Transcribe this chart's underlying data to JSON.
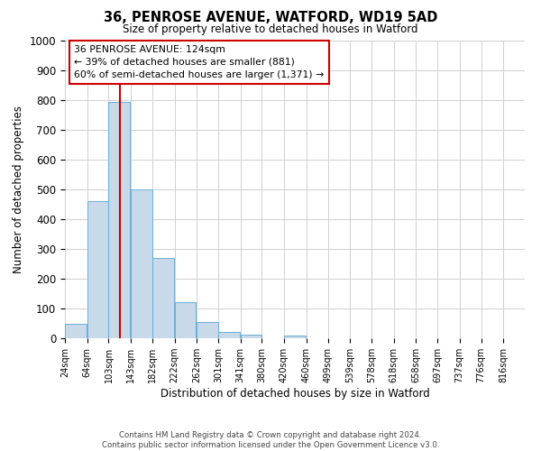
{
  "title": "36, PENROSE AVENUE, WATFORD, WD19 5AD",
  "subtitle": "Size of property relative to detached houses in Watford",
  "xlabel": "Distribution of detached houses by size in Watford",
  "ylabel": "Number of detached properties",
  "bar_left_edges": [
    24,
    64,
    103,
    143,
    182,
    222,
    262,
    301,
    341,
    380,
    420,
    460,
    499,
    539,
    578,
    618,
    658,
    697,
    737,
    776
  ],
  "bar_heights": [
    50,
    460,
    795,
    500,
    270,
    120,
    55,
    20,
    13,
    0,
    8,
    0,
    0,
    0,
    0,
    0,
    0,
    0,
    0,
    0
  ],
  "bin_width": 39,
  "bar_color": "#c8d9ea",
  "bar_edge_color": "#6aaed6",
  "vline_x": 124,
  "vline_color": "#cc0000",
  "ylim_max": 1000,
  "yticks": [
    0,
    100,
    200,
    300,
    400,
    500,
    600,
    700,
    800,
    900,
    1000
  ],
  "xtick_labels": [
    "24sqm",
    "64sqm",
    "103sqm",
    "143sqm",
    "182sqm",
    "222sqm",
    "262sqm",
    "301sqm",
    "341sqm",
    "380sqm",
    "420sqm",
    "460sqm",
    "499sqm",
    "539sqm",
    "578sqm",
    "618sqm",
    "658sqm",
    "697sqm",
    "737sqm",
    "776sqm",
    "816sqm"
  ],
  "xtick_positions": [
    24,
    64,
    103,
    143,
    182,
    222,
    262,
    301,
    341,
    380,
    420,
    460,
    499,
    539,
    578,
    618,
    658,
    697,
    737,
    776,
    816
  ],
  "xlim": [
    24,
    855
  ],
  "annotation_title": "36 PENROSE AVENUE: 124sqm",
  "annotation_line1": "← 39% of detached houses are smaller (881)",
  "annotation_line2": "60% of semi-detached houses are larger (1,371) →",
  "annotation_box_color": "#ffffff",
  "annotation_box_edge_color": "#cc0000",
  "footer_line1": "Contains HM Land Registry data © Crown copyright and database right 2024.",
  "footer_line2": "Contains public sector information licensed under the Open Government Licence v3.0.",
  "background_color": "#ffffff",
  "grid_color": "#d0d0d0"
}
